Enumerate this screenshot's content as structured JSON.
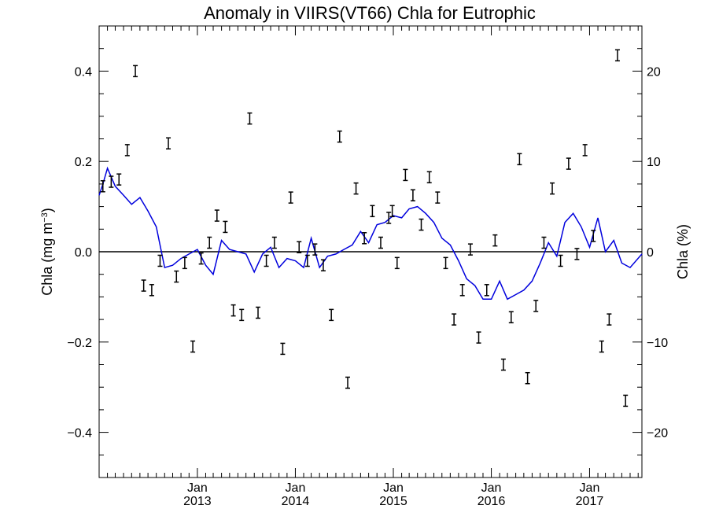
{
  "chart_data": {
    "type": "scatter",
    "title": "Anomaly in VIIRS(VT66) Chla for Eutrophic",
    "ylabel_left": {
      "base": "Chla (mg m",
      "sup": "−3",
      "tail": ")"
    },
    "ylabel_right": "Chla (%)",
    "xlabel": "",
    "xlim": [
      "2012-01-01",
      "2017-07-15"
    ],
    "ylim": [
      -0.5,
      0.5
    ],
    "ylim_right": [
      -25,
      25
    ],
    "x_ticks": [
      {
        "date": "2013-01-01",
        "month": "Jan",
        "year": "2013"
      },
      {
        "date": "2014-01-01",
        "month": "Jan",
        "year": "2014"
      },
      {
        "date": "2015-01-01",
        "month": "Jan",
        "year": "2015"
      },
      {
        "date": "2016-01-01",
        "month": "Jan",
        "year": "2016"
      },
      {
        "date": "2017-01-01",
        "month": "Jan",
        "year": "2017"
      }
    ],
    "y_ticks_left": [
      "0.4",
      "0.2",
      "0.0",
      "−0.2",
      "−0.4"
    ],
    "y_tick_values_left": [
      0.4,
      0.2,
      0.0,
      -0.2,
      -0.4
    ],
    "y_ticks_right": [
      "20",
      "10",
      "0",
      "−10",
      "−20"
    ],
    "y_tick_values_right": [
      20,
      10,
      0,
      -10,
      -20
    ],
    "zero_line": true,
    "grid": false,
    "line_color": "#0000dd",
    "point_color": "#000000",
    "series": [
      {
        "kind": "points",
        "points": [
          {
            "x": "2012-01-15",
            "y": 0.145
          },
          {
            "x": "2012-02-15",
            "y": 0.155
          },
          {
            "x": "2012-03-15",
            "y": 0.16
          },
          {
            "x": "2012-04-15",
            "y": 0.225
          },
          {
            "x": "2012-05-15",
            "y": 0.4
          },
          {
            "x": "2012-06-15",
            "y": -0.075
          },
          {
            "x": "2012-07-15",
            "y": -0.085
          },
          {
            "x": "2012-08-15",
            "y": -0.02
          },
          {
            "x": "2012-09-15",
            "y": 0.24
          },
          {
            "x": "2012-10-15",
            "y": -0.055
          },
          {
            "x": "2012-11-15",
            "y": -0.025
          },
          {
            "x": "2012-12-15",
            "y": -0.21
          },
          {
            "x": "2013-01-15",
            "y": -0.015
          },
          {
            "x": "2013-02-15",
            "y": 0.02
          },
          {
            "x": "2013-03-15",
            "y": 0.08
          },
          {
            "x": "2013-04-15",
            "y": 0.055
          },
          {
            "x": "2013-05-15",
            "y": -0.13
          },
          {
            "x": "2013-06-15",
            "y": -0.14
          },
          {
            "x": "2013-07-15",
            "y": 0.295
          },
          {
            "x": "2013-08-15",
            "y": -0.135
          },
          {
            "x": "2013-09-15",
            "y": -0.02
          },
          {
            "x": "2013-10-15",
            "y": 0.02
          },
          {
            "x": "2013-11-15",
            "y": -0.215
          },
          {
            "x": "2013-12-15",
            "y": 0.12
          },
          {
            "x": "2014-01-15",
            "y": 0.01
          },
          {
            "x": "2014-02-15",
            "y": -0.02
          },
          {
            "x": "2014-03-15",
            "y": 0.005
          },
          {
            "x": "2014-04-15",
            "y": -0.03
          },
          {
            "x": "2014-05-15",
            "y": -0.14
          },
          {
            "x": "2014-06-15",
            "y": 0.255
          },
          {
            "x": "2014-07-15",
            "y": -0.29
          },
          {
            "x": "2014-08-15",
            "y": 0.14
          },
          {
            "x": "2014-09-15",
            "y": 0.03
          },
          {
            "x": "2014-10-15",
            "y": 0.09
          },
          {
            "x": "2014-11-15",
            "y": 0.02
          },
          {
            "x": "2014-12-15",
            "y": 0.075
          },
          {
            "x": "2014-12-28",
            "y": 0.09
          },
          {
            "x": "2015-01-15",
            "y": -0.025
          },
          {
            "x": "2015-02-15",
            "y": 0.17
          },
          {
            "x": "2015-03-15",
            "y": 0.125
          },
          {
            "x": "2015-04-15",
            "y": 0.06
          },
          {
            "x": "2015-05-15",
            "y": 0.165
          },
          {
            "x": "2015-06-15",
            "y": 0.12
          },
          {
            "x": "2015-07-15",
            "y": -0.025
          },
          {
            "x": "2015-08-15",
            "y": -0.15
          },
          {
            "x": "2015-09-15",
            "y": -0.085
          },
          {
            "x": "2015-10-15",
            "y": 0.005
          },
          {
            "x": "2015-11-15",
            "y": -0.19
          },
          {
            "x": "2015-12-15",
            "y": -0.085
          },
          {
            "x": "2016-01-15",
            "y": 0.025
          },
          {
            "x": "2016-02-15",
            "y": -0.25
          },
          {
            "x": "2016-03-15",
            "y": -0.145
          },
          {
            "x": "2016-04-15",
            "y": 0.205
          },
          {
            "x": "2016-05-15",
            "y": -0.28
          },
          {
            "x": "2016-06-15",
            "y": -0.12
          },
          {
            "x": "2016-07-15",
            "y": 0.02
          },
          {
            "x": "2016-08-15",
            "y": 0.14
          },
          {
            "x": "2016-09-15",
            "y": -0.02
          },
          {
            "x": "2016-10-15",
            "y": 0.195
          },
          {
            "x": "2016-11-15",
            "y": -0.005
          },
          {
            "x": "2016-12-15",
            "y": 0.225
          },
          {
            "x": "2017-01-15",
            "y": 0.035
          },
          {
            "x": "2017-02-15",
            "y": -0.21
          },
          {
            "x": "2017-03-15",
            "y": -0.15
          },
          {
            "x": "2017-04-15",
            "y": 0.435
          },
          {
            "x": "2017-05-15",
            "y": -0.33
          }
        ]
      },
      {
        "kind": "line",
        "points": [
          {
            "x": "2012-01-01",
            "y": 0.125
          },
          {
            "x": "2012-01-15",
            "y": 0.15
          },
          {
            "x": "2012-02-01",
            "y": 0.185
          },
          {
            "x": "2012-03-01",
            "y": 0.145
          },
          {
            "x": "2012-04-01",
            "y": 0.125
          },
          {
            "x": "2012-05-01",
            "y": 0.105
          },
          {
            "x": "2012-06-01",
            "y": 0.12
          },
          {
            "x": "2012-07-01",
            "y": 0.09
          },
          {
            "x": "2012-08-01",
            "y": 0.055
          },
          {
            "x": "2012-09-01",
            "y": -0.035
          },
          {
            "x": "2012-10-01",
            "y": -0.03
          },
          {
            "x": "2012-11-01",
            "y": -0.015
          },
          {
            "x": "2012-12-01",
            "y": -0.005
          },
          {
            "x": "2013-01-01",
            "y": 0.005
          },
          {
            "x": "2013-02-01",
            "y": -0.03
          },
          {
            "x": "2013-03-01",
            "y": -0.05
          },
          {
            "x": "2013-04-01",
            "y": 0.025
          },
          {
            "x": "2013-05-01",
            "y": 0.005
          },
          {
            "x": "2013-06-01",
            "y": 0.0
          },
          {
            "x": "2013-07-01",
            "y": -0.005
          },
          {
            "x": "2013-08-01",
            "y": -0.045
          },
          {
            "x": "2013-09-01",
            "y": -0.005
          },
          {
            "x": "2013-10-01",
            "y": 0.01
          },
          {
            "x": "2013-11-01",
            "y": -0.035
          },
          {
            "x": "2013-12-01",
            "y": -0.015
          },
          {
            "x": "2014-01-01",
            "y": -0.02
          },
          {
            "x": "2014-02-01",
            "y": -0.035
          },
          {
            "x": "2014-03-01",
            "y": 0.03
          },
          {
            "x": "2014-04-01",
            "y": -0.035
          },
          {
            "x": "2014-05-01",
            "y": -0.01
          },
          {
            "x": "2014-06-01",
            "y": -0.005
          },
          {
            "x": "2014-07-01",
            "y": 0.005
          },
          {
            "x": "2014-08-01",
            "y": 0.015
          },
          {
            "x": "2014-09-01",
            "y": 0.045
          },
          {
            "x": "2014-10-01",
            "y": 0.02
          },
          {
            "x": "2014-11-01",
            "y": 0.06
          },
          {
            "x": "2014-12-01",
            "y": 0.065
          },
          {
            "x": "2015-01-01",
            "y": 0.08
          },
          {
            "x": "2015-02-01",
            "y": 0.075
          },
          {
            "x": "2015-03-01",
            "y": 0.095
          },
          {
            "x": "2015-04-01",
            "y": 0.1
          },
          {
            "x": "2015-05-01",
            "y": 0.085
          },
          {
            "x": "2015-06-01",
            "y": 0.065
          },
          {
            "x": "2015-07-01",
            "y": 0.03
          },
          {
            "x": "2015-08-01",
            "y": 0.015
          },
          {
            "x": "2015-09-01",
            "y": -0.02
          },
          {
            "x": "2015-10-01",
            "y": -0.06
          },
          {
            "x": "2015-11-01",
            "y": -0.075
          },
          {
            "x": "2015-12-01",
            "y": -0.105
          },
          {
            "x": "2016-01-01",
            "y": -0.105
          },
          {
            "x": "2016-02-01",
            "y": -0.065
          },
          {
            "x": "2016-03-01",
            "y": -0.105
          },
          {
            "x": "2016-04-01",
            "y": -0.095
          },
          {
            "x": "2016-05-01",
            "y": -0.085
          },
          {
            "x": "2016-06-01",
            "y": -0.065
          },
          {
            "x": "2016-07-01",
            "y": -0.025
          },
          {
            "x": "2016-08-01",
            "y": 0.02
          },
          {
            "x": "2016-09-01",
            "y": -0.01
          },
          {
            "x": "2016-10-01",
            "y": 0.065
          },
          {
            "x": "2016-11-01",
            "y": 0.085
          },
          {
            "x": "2016-12-01",
            "y": 0.055
          },
          {
            "x": "2017-01-01",
            "y": 0.01
          },
          {
            "x": "2017-02-01",
            "y": 0.075
          },
          {
            "x": "2017-03-01",
            "y": 0.0
          },
          {
            "x": "2017-04-01",
            "y": 0.025
          },
          {
            "x": "2017-05-01",
            "y": -0.025
          },
          {
            "x": "2017-06-01",
            "y": -0.035
          },
          {
            "x": "2017-07-15",
            "y": -0.005
          }
        ]
      }
    ]
  }
}
